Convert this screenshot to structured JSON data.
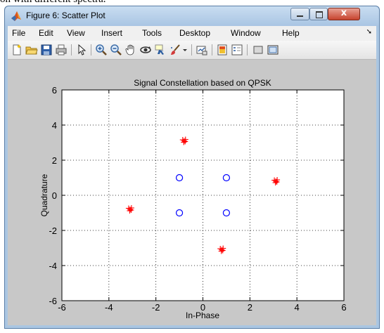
{
  "page": {
    "caption": "on with different spectra."
  },
  "window": {
    "title": "Figure 6: Scatter Plot",
    "close_glyph": "x"
  },
  "menu": {
    "items": [
      "File",
      "Edit",
      "View",
      "Insert",
      "Tools",
      "Desktop",
      "Window",
      "Help"
    ],
    "more_glyph": "➘"
  },
  "toolbar": {
    "icons": [
      "new-figure-icon",
      "open-file-icon",
      "save-icon",
      "print-icon",
      "edit-plot-icon",
      "zoom-in-icon",
      "zoom-out-icon",
      "pan-icon",
      "rotate-3d-icon",
      "data-cursor-icon",
      "brush-icon",
      "link-plot-icon",
      "colorbar-icon",
      "legend-icon",
      "hide-plot-tools-icon",
      "show-plot-tools-icon"
    ]
  },
  "chart_data": {
    "type": "scatter",
    "title": "Signal Constellation based on QPSK",
    "xlabel": "In-Phase",
    "ylabel": "Quadrature",
    "xlim": [
      -6,
      6
    ],
    "ylim": [
      -6,
      6
    ],
    "xticks": [
      -6,
      -4,
      -2,
      0,
      2,
      4,
      6
    ],
    "yticks": [
      -6,
      -4,
      -2,
      0,
      2,
      4,
      6
    ],
    "grid": true,
    "series": [
      {
        "marker": "circle",
        "color": "#0000ff",
        "points": [
          [
            -1,
            1
          ],
          [
            1,
            1
          ],
          [
            -1,
            -1
          ],
          [
            1,
            -1
          ]
        ]
      },
      {
        "marker": "plus-cluster",
        "color": "#ff0000",
        "points": [
          [
            -0.8,
            3.1
          ],
          [
            3.1,
            0.8
          ],
          [
            -3.1,
            -0.8
          ],
          [
            0.8,
            -3.1
          ]
        ]
      }
    ]
  }
}
